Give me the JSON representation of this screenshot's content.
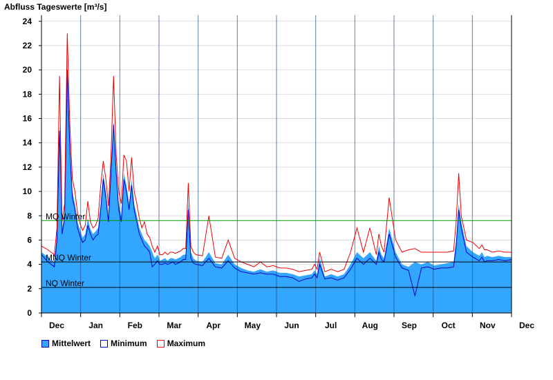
{
  "chart_data": {
    "type": "area",
    "title": "Abfluss Tageswerte [m³/s]",
    "ylim": [
      0,
      24.5
    ],
    "yticks": [
      0,
      2,
      4,
      6,
      8,
      10,
      12,
      14,
      16,
      18,
      20,
      22,
      24
    ],
    "months": [
      "Dec",
      "Jan",
      "Feb",
      "Mar",
      "Apr",
      "May",
      "Jun",
      "Jul",
      "Aug",
      "Sep",
      "Oct",
      "Nov",
      "Dec"
    ],
    "colors": {
      "mean_fill": "#33a6ff",
      "min_line": "#0000cc",
      "max_line": "#ee0000",
      "mq_line": "#009900",
      "ref_line": "#000000",
      "grid": "#dddddd",
      "month_line": "#1a4d80"
    },
    "reference_lines": [
      {
        "label": "MQ Winter",
        "value": 7.6,
        "color": "#009900"
      },
      {
        "label": "MNQ Winter",
        "value": 4.2,
        "color": "#000000"
      },
      {
        "label": "NQ Winter",
        "value": 2.1,
        "color": "#000000"
      }
    ],
    "legend": [
      {
        "name": "Mittelwert",
        "key": "mean"
      },
      {
        "name": "Minimum",
        "key": "min"
      },
      {
        "name": "Maximum",
        "key": "max"
      }
    ],
    "series": [
      {
        "name": "Mittelwert",
        "x": [
          0,
          5,
          10,
          12,
          14,
          15,
          16,
          18,
          20,
          22,
          24,
          26,
          28,
          30,
          32,
          34,
          36,
          38,
          40,
          42,
          44,
          46,
          48,
          50,
          52,
          54,
          56,
          58,
          60,
          62,
          64,
          66,
          68,
          70,
          72,
          74,
          76,
          78,
          80,
          82,
          84,
          86,
          88,
          90,
          92,
          94,
          96,
          98,
          100,
          102,
          104,
          106,
          108,
          110,
          112,
          114,
          116,
          118,
          120,
          125,
          130,
          135,
          140,
          145,
          150,
          155,
          160,
          165,
          170,
          175,
          180,
          185,
          190,
          195,
          200,
          205,
          210,
          212,
          214,
          216,
          220,
          225,
          230,
          235,
          240,
          245,
          250,
          255,
          260,
          262,
          264,
          266,
          270,
          275,
          280,
          285,
          290,
          295,
          300,
          305,
          310,
          315,
          320,
          322,
          324,
          326,
          330,
          335,
          340,
          342,
          344,
          346,
          350,
          355,
          360,
          365
        ],
        "values": [
          5.0,
          4.6,
          4.2,
          6.5,
          15.5,
          12.5,
          7.0,
          8.0,
          20.5,
          14.0,
          10.0,
          9.0,
          7.5,
          6.8,
          6.2,
          6.5,
          7.8,
          6.9,
          6.5,
          6.7,
          7.0,
          9.0,
          11.5,
          10.0,
          8.0,
          12.0,
          15.8,
          12.0,
          9.0,
          8.0,
          11.5,
          10.5,
          9.0,
          11.0,
          9.0,
          8.0,
          7.0,
          6.5,
          6.0,
          5.8,
          5.5,
          5.0,
          4.5,
          4.8,
          4.3,
          4.4,
          4.5,
          4.3,
          4.5,
          4.5,
          4.4,
          4.5,
          4.6,
          4.8,
          4.8,
          9.0,
          5.0,
          4.5,
          4.3,
          4.2,
          5.0,
          4.1,
          4.0,
          4.8,
          4.0,
          3.7,
          3.5,
          3.4,
          3.6,
          3.4,
          3.5,
          3.3,
          3.3,
          3.2,
          3.0,
          3.1,
          3.2,
          3.5,
          3.2,
          4.5,
          3.0,
          3.2,
          3.0,
          3.2,
          4.0,
          5.0,
          4.5,
          5.0,
          4.3,
          5.5,
          4.8,
          4.5,
          7.0,
          5.0,
          4.0,
          3.8,
          4.2,
          4.0,
          4.2,
          3.9,
          4.0,
          4.1,
          4.2,
          6.0,
          9.0,
          7.5,
          5.5,
          5.0,
          4.7,
          5.0,
          4.6,
          4.7,
          4.6,
          4.7,
          4.6,
          4.6
        ],
        "color": "#33a6ff"
      },
      {
        "name": "Minimum",
        "x": [
          0,
          5,
          10,
          12,
          14,
          15,
          16,
          18,
          20,
          22,
          24,
          26,
          28,
          30,
          32,
          34,
          36,
          38,
          40,
          42,
          44,
          46,
          48,
          50,
          52,
          54,
          56,
          58,
          60,
          62,
          64,
          66,
          68,
          70,
          72,
          74,
          76,
          78,
          80,
          82,
          84,
          86,
          88,
          90,
          92,
          94,
          96,
          98,
          100,
          102,
          104,
          106,
          108,
          110,
          112,
          114,
          116,
          118,
          120,
          125,
          130,
          135,
          140,
          145,
          150,
          155,
          160,
          165,
          170,
          175,
          180,
          185,
          190,
          195,
          200,
          205,
          210,
          212,
          214,
          216,
          220,
          225,
          230,
          235,
          240,
          245,
          250,
          255,
          260,
          262,
          264,
          266,
          270,
          275,
          280,
          285,
          290,
          295,
          300,
          305,
          310,
          315,
          320,
          322,
          324,
          326,
          330,
          335,
          340,
          342,
          344,
          346,
          350,
          355,
          360,
          365
        ],
        "values": [
          4.8,
          4.2,
          3.8,
          6.0,
          15.0,
          12.0,
          6.5,
          7.8,
          20.0,
          13.5,
          9.5,
          8.5,
          7.0,
          6.3,
          5.8,
          6.0,
          7.2,
          6.5,
          6.0,
          6.3,
          6.5,
          8.5,
          11.0,
          9.5,
          7.5,
          11.5,
          15.5,
          11.5,
          8.5,
          7.5,
          11.0,
          10.0,
          8.5,
          10.5,
          8.5,
          7.5,
          6.5,
          6.0,
          5.5,
          5.3,
          5.0,
          3.8,
          4.0,
          4.3,
          4.0,
          4.0,
          4.1,
          4.0,
          4.1,
          4.2,
          4.0,
          4.1,
          4.2,
          4.4,
          4.4,
          8.5,
          4.5,
          4.1,
          4.0,
          3.9,
          4.5,
          3.8,
          3.7,
          4.3,
          3.7,
          3.4,
          3.3,
          3.2,
          3.3,
          3.2,
          3.2,
          3.0,
          3.0,
          2.9,
          2.6,
          2.8,
          2.9,
          3.2,
          2.9,
          4.0,
          2.8,
          2.9,
          2.7,
          2.9,
          3.6,
          4.5,
          4.0,
          4.5,
          4.0,
          5.0,
          4.4,
          4.2,
          6.5,
          4.6,
          3.7,
          3.5,
          1.4,
          3.7,
          3.8,
          3.6,
          3.7,
          3.7,
          3.8,
          5.5,
          8.5,
          7.0,
          5.0,
          4.6,
          4.3,
          4.6,
          4.2,
          4.3,
          4.3,
          4.4,
          4.3,
          4.4
        ],
        "color": "#0000cc"
      },
      {
        "name": "Maximum",
        "x": [
          0,
          5,
          10,
          12,
          14,
          15,
          16,
          18,
          20,
          22,
          24,
          26,
          28,
          30,
          32,
          34,
          36,
          38,
          40,
          42,
          44,
          46,
          48,
          50,
          52,
          54,
          56,
          58,
          60,
          62,
          64,
          66,
          68,
          70,
          72,
          74,
          76,
          78,
          80,
          82,
          84,
          86,
          88,
          90,
          92,
          94,
          96,
          98,
          100,
          102,
          104,
          106,
          108,
          110,
          112,
          114,
          116,
          118,
          120,
          125,
          130,
          135,
          140,
          145,
          150,
          155,
          160,
          165,
          170,
          175,
          180,
          185,
          190,
          195,
          200,
          205,
          210,
          212,
          214,
          216,
          220,
          225,
          230,
          235,
          240,
          245,
          250,
          255,
          260,
          262,
          264,
          266,
          270,
          275,
          280,
          285,
          290,
          295,
          300,
          305,
          310,
          315,
          320,
          322,
          324,
          326,
          330,
          335,
          340,
          342,
          344,
          346,
          350,
          355,
          360,
          365
        ],
        "values": [
          5.5,
          5.2,
          4.8,
          7.0,
          19.5,
          13.5,
          7.5,
          9.0,
          23.0,
          15.5,
          11.0,
          10.0,
          8.2,
          7.3,
          6.8,
          7.2,
          9.2,
          7.5,
          7.0,
          7.2,
          7.8,
          10.5,
          12.5,
          11.0,
          8.8,
          13.0,
          19.5,
          13.0,
          10.0,
          9.0,
          13.0,
          12.5,
          10.0,
          12.8,
          10.0,
          9.0,
          7.8,
          7.0,
          7.5,
          6.5,
          6.2,
          5.5,
          5.0,
          5.5,
          4.8,
          4.8,
          5.0,
          4.8,
          5.0,
          5.0,
          4.9,
          5.0,
          5.1,
          5.3,
          5.3,
          10.7,
          5.5,
          5.0,
          4.8,
          4.7,
          8.0,
          4.6,
          4.5,
          6.0,
          4.5,
          4.2,
          4.0,
          3.8,
          4.2,
          3.8,
          3.9,
          3.7,
          3.7,
          3.6,
          3.4,
          3.5,
          3.6,
          4.0,
          3.6,
          5.0,
          3.4,
          3.6,
          3.4,
          3.6,
          5.0,
          7.0,
          5.0,
          7.0,
          4.8,
          6.5,
          5.5,
          5.0,
          9.5,
          6.0,
          5.0,
          5.2,
          5.3,
          5.0,
          5.0,
          5.0,
          5.0,
          5.0,
          5.1,
          7.5,
          11.5,
          8.0,
          6.0,
          5.8,
          5.3,
          5.6,
          5.2,
          5.2,
          5.0,
          5.1,
          5.0,
          5.0
        ],
        "color": "#ee0000"
      }
    ]
  }
}
